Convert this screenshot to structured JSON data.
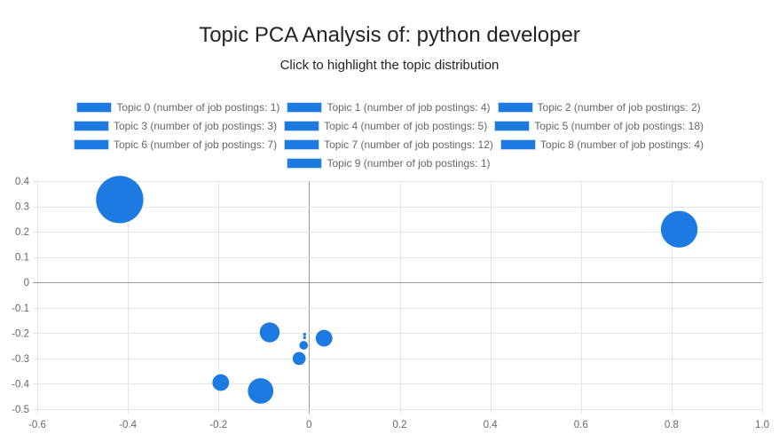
{
  "chart_data": {
    "type": "scatter",
    "title": "Topic PCA Analysis of: python developer",
    "subtitle": "Click to highlight the topic distribution",
    "xlabel": "",
    "ylabel": "",
    "xlim": [
      -0.6,
      1.0
    ],
    "ylim": [
      -0.5,
      0.4
    ],
    "x_ticks": [
      -0.6,
      -0.4,
      -0.2,
      0,
      0.2,
      0.4,
      0.6,
      0.8,
      1.0
    ],
    "x_tick_labels": [
      "-0.6",
      "-0.4",
      "-0.2",
      "0",
      "0.2",
      "0.4",
      "0.6",
      "0.8",
      "1.0"
    ],
    "y_ticks": [
      0.4,
      0.3,
      0.2,
      0.1,
      0,
      -0.1,
      -0.2,
      -0.3,
      -0.4,
      -0.5
    ],
    "y_tick_labels": [
      "0.4",
      "0.3",
      "0.2",
      "0.1",
      "0",
      "-0.1",
      "-0.2",
      "-0.3",
      "-0.4",
      "-0.5"
    ],
    "grid": true,
    "legend_position": "top",
    "color": "#1c7ae0",
    "series": [
      {
        "name": "Topic 0 (number of job postings: 1)",
        "x": -0.01,
        "y": -0.205,
        "postings": 1
      },
      {
        "name": "Topic 1 (number of job postings: 4)",
        "x": 0.033,
        "y": -0.22,
        "postings": 4
      },
      {
        "name": "Topic 2 (number of job postings: 2)",
        "x": -0.012,
        "y": -0.248,
        "postings": 2
      },
      {
        "name": "Topic 3 (number of job postings: 3)",
        "x": -0.022,
        "y": -0.3,
        "postings": 3
      },
      {
        "name": "Topic 4 (number of job postings: 5)",
        "x": -0.087,
        "y": -0.197,
        "postings": 5
      },
      {
        "name": "Topic 5 (number of job postings: 18)",
        "x": -0.418,
        "y": 0.327,
        "postings": 18
      },
      {
        "name": "Topic 6 (number of job postings: 7)",
        "x": -0.107,
        "y": -0.428,
        "postings": 7
      },
      {
        "name": "Topic 7 (number of job postings: 12)",
        "x": 0.817,
        "y": 0.21,
        "postings": 12
      },
      {
        "name": "Topic 8 (number of job postings: 4)",
        "x": -0.195,
        "y": -0.395,
        "postings": 4
      },
      {
        "name": "Topic 9 (number of job postings: 1)",
        "x": -0.01,
        "y": -0.218,
        "postings": 1
      }
    ]
  }
}
